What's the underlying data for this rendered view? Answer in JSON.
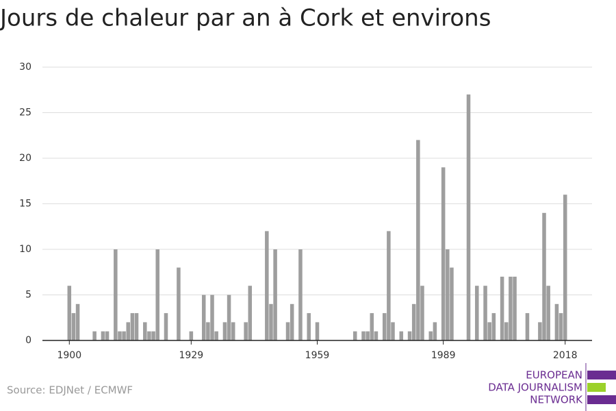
{
  "chart_data": {
    "type": "bar",
    "title": "Jours de chaleur par an à Cork et environs",
    "source": "Source: EDJNet / ECMWF",
    "logo": [
      "EUROPEAN",
      "DATA JOURNALISM",
      "NETWORK"
    ],
    "color": "#9e9e9e",
    "x": [
      1900,
      1901,
      1902,
      1906,
      1908,
      1909,
      1911,
      1912,
      1913,
      1914,
      1915,
      1916,
      1918,
      1919,
      1920,
      1921,
      1923,
      1926,
      1929,
      1932,
      1933,
      1934,
      1935,
      1937,
      1938,
      1939,
      1942,
      1943,
      1947,
      1948,
      1949,
      1952,
      1953,
      1955,
      1957,
      1959,
      1968,
      1970,
      1971,
      1972,
      1973,
      1975,
      1976,
      1977,
      1979,
      1981,
      1982,
      1983,
      1984,
      1986,
      1987,
      1989,
      1990,
      1991,
      1995,
      1997,
      1999,
      2000,
      2001,
      2003,
      2004,
      2005,
      2006,
      2009,
      2012,
      2013,
      2014,
      2016,
      2017,
      2018
    ],
    "values": [
      6,
      3,
      4,
      1,
      1,
      1,
      10,
      1,
      1,
      2,
      3,
      3,
      2,
      1,
      1,
      10,
      3,
      8,
      1,
      5,
      2,
      5,
      1,
      2,
      5,
      2,
      2,
      6,
      12,
      4,
      10,
      2,
      4,
      10,
      3,
      2,
      1,
      1,
      1,
      3,
      1,
      3,
      12,
      2,
      1,
      1,
      4,
      22,
      6,
      1,
      2,
      19,
      10,
      8,
      27,
      6,
      6,
      2,
      3,
      7,
      2,
      7,
      7,
      3,
      2,
      14,
      6,
      4,
      3,
      16
    ],
    "xlim": [
      1893.6,
      2024.4
    ],
    "xticks": [
      1900,
      1929,
      1959,
      1989,
      2018
    ],
    "ylim": [
      0,
      30
    ],
    "yticks": [
      0,
      5,
      10,
      15,
      20,
      25,
      30
    ],
    "grid": true
  }
}
